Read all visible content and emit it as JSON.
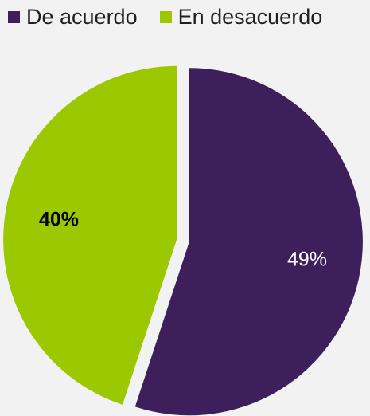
{
  "chart_data": {
    "type": "pie",
    "slices": [
      {
        "label": "De acuerdo",
        "value": 49,
        "display": "49%",
        "color": "#3d1f5b",
        "label_color": "#ffffff",
        "label_bold": false
      },
      {
        "label": "En desacuerdo",
        "value": 40,
        "display": "40%",
        "color": "#9bc800",
        "label_color": "#000000",
        "label_bold": true
      }
    ],
    "legend": {
      "position": "top-left"
    },
    "title": "",
    "exploded": true
  }
}
